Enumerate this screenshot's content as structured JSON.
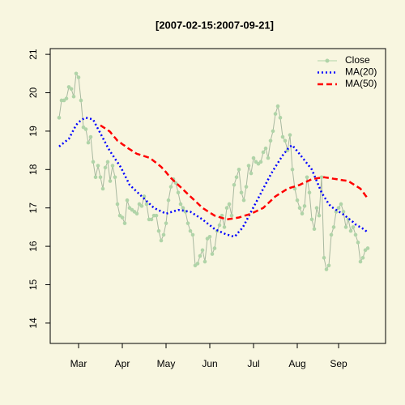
{
  "chart_data": {
    "type": "line",
    "title": "[2007-02-15:2007-09-21]",
    "categories": [
      null,
      null,
      null,
      null,
      null,
      null,
      null,
      null,
      "Mar",
      null,
      null,
      null,
      null,
      null,
      null,
      null,
      null,
      null,
      null,
      null,
      null,
      null,
      null,
      null,
      null,
      null,
      "Apr",
      null,
      null,
      null,
      null,
      null,
      null,
      null,
      null,
      null,
      null,
      null,
      null,
      null,
      null,
      null,
      null,
      null,
      "May",
      null,
      null,
      null,
      null,
      null,
      null,
      null,
      null,
      null,
      null,
      null,
      null,
      null,
      null,
      null,
      null,
      null,
      "Jun",
      null,
      null,
      null,
      null,
      null,
      null,
      null,
      null,
      null,
      null,
      null,
      null,
      null,
      null,
      null,
      null,
      null,
      "Jul",
      null,
      null,
      null,
      null,
      null,
      null,
      null,
      null,
      null,
      null,
      null,
      null,
      null,
      null,
      null,
      null,
      null,
      "Aug",
      null,
      null,
      null,
      null,
      null,
      null,
      null,
      null,
      null,
      null,
      null,
      null,
      null,
      null,
      null,
      null,
      "Sep",
      null,
      null,
      null,
      null,
      null,
      null,
      null,
      null,
      null,
      null,
      null,
      null
    ],
    "series": [
      {
        "name": "Close",
        "color": "#b0d4a8",
        "line_color": "#a8b8a0",
        "line_style": "solid",
        "marker": true,
        "values": [
          19.35,
          19.8,
          19.8,
          19.85,
          20.15,
          20.1,
          19.9,
          20.5,
          20.4,
          19.8,
          19.1,
          19.05,
          18.7,
          18.85,
          18.2,
          17.8,
          18.1,
          17.8,
          17.5,
          18.05,
          18.2,
          17.7,
          18.1,
          17.8,
          17.1,
          16.8,
          16.75,
          16.6,
          17.2,
          17.0,
          16.95,
          16.9,
          16.85,
          17.1,
          17.05,
          17.3,
          17.1,
          16.7,
          16.7,
          16.8,
          16.8,
          16.4,
          16.15,
          16.3,
          16.6,
          17.2,
          17.55,
          17.75,
          17.65,
          17.4,
          17.1,
          17.0,
          16.9,
          16.6,
          16.4,
          16.3,
          15.5,
          15.55,
          15.75,
          15.9,
          15.6,
          16.2,
          16.25,
          15.8,
          15.95,
          16.4,
          16.55,
          16.8,
          16.5,
          17.0,
          17.1,
          16.8,
          17.6,
          17.8,
          18.0,
          17.4,
          17.2,
          17.55,
          18.1,
          17.9,
          18.3,
          18.2,
          18.15,
          18.2,
          18.45,
          18.55,
          18.3,
          18.75,
          19.0,
          19.45,
          19.65,
          19.35,
          18.85,
          18.75,
          18.5,
          18.9,
          18.0,
          17.5,
          17.2,
          17.0,
          16.85,
          17.05,
          17.8,
          17.4,
          16.7,
          16.45,
          17.0,
          16.8,
          17.8,
          15.7,
          15.4,
          15.5,
          16.3,
          16.5,
          16.9,
          17.0,
          17.1,
          16.9,
          16.5,
          16.7,
          16.4,
          16.5,
          16.3,
          16.1,
          15.6,
          15.7,
          15.9,
          15.95
        ]
      },
      {
        "name": "MA(20)",
        "color": "#0000ff",
        "line_style": "dotted",
        "marker": false,
        "values": [
          18.6,
          18.65,
          18.7,
          18.75,
          18.8,
          18.92,
          19.04,
          19.16,
          19.23,
          19.28,
          19.32,
          19.35,
          19.33,
          19.32,
          19.3,
          19.18,
          19.06,
          18.94,
          18.82,
          18.7,
          18.58,
          18.47,
          18.38,
          18.28,
          18.19,
          18.1,
          17.98,
          17.85,
          17.73,
          17.6,
          17.54,
          17.48,
          17.42,
          17.36,
          17.3,
          17.24,
          17.18,
          17.12,
          17.06,
          17.0,
          16.97,
          16.94,
          16.91,
          16.88,
          16.85,
          16.87,
          16.89,
          16.91,
          16.93,
          16.95,
          16.94,
          16.93,
          16.92,
          16.91,
          16.9,
          16.86,
          16.82,
          16.78,
          16.74,
          16.7,
          16.65,
          16.6,
          16.55,
          16.5,
          16.45,
          16.42,
          16.39,
          16.36,
          16.33,
          16.3,
          16.29,
          16.27,
          16.25,
          16.3,
          16.38,
          16.45,
          16.54,
          16.66,
          16.78,
          16.9,
          17.02,
          17.14,
          17.26,
          17.38,
          17.5,
          17.62,
          17.74,
          17.86,
          17.97,
          18.07,
          18.17,
          18.27,
          18.37,
          18.45,
          18.53,
          18.6,
          18.63,
          18.55,
          18.48,
          18.4,
          18.32,
          18.24,
          18.16,
          18.08,
          18.0,
          17.85,
          17.7,
          17.55,
          17.4,
          17.3,
          17.2,
          17.1,
          17.03,
          16.99,
          16.95,
          16.91,
          16.87,
          16.83,
          16.78,
          16.73,
          16.68,
          16.63,
          16.57,
          16.53,
          16.5,
          16.46,
          16.42,
          16.35
        ]
      },
      {
        "name": "MA(50)",
        "color": "#ff0000",
        "line_style": "dashed",
        "marker": false,
        "values": [
          null,
          null,
          null,
          null,
          null,
          null,
          null,
          null,
          null,
          null,
          null,
          null,
          null,
          null,
          null,
          null,
          null,
          19.15,
          19.11,
          19.07,
          19.03,
          18.98,
          18.9,
          18.83,
          18.75,
          18.71,
          18.66,
          18.62,
          18.57,
          18.53,
          18.49,
          18.45,
          18.41,
          18.39,
          18.37,
          18.35,
          18.33,
          18.31,
          18.27,
          18.22,
          18.17,
          18.12,
          18.07,
          18.0,
          17.93,
          17.85,
          17.78,
          17.72,
          17.66,
          17.6,
          17.54,
          17.48,
          17.42,
          17.36,
          17.3,
          17.24,
          17.18,
          17.12,
          17.06,
          17.0,
          16.96,
          16.92,
          16.88,
          16.84,
          16.8,
          16.78,
          16.76,
          16.74,
          16.72,
          16.7,
          16.71,
          16.72,
          16.73,
          16.74,
          16.75,
          16.77,
          16.79,
          16.81,
          16.83,
          16.85,
          16.88,
          16.91,
          16.94,
          16.97,
          17.0,
          17.06,
          17.12,
          17.18,
          17.24,
          17.3,
          17.34,
          17.38,
          17.42,
          17.46,
          17.5,
          17.52,
          17.54,
          17.56,
          17.58,
          17.6,
          17.63,
          17.66,
          17.69,
          17.72,
          17.75,
          17.76,
          17.77,
          17.78,
          17.79,
          17.8,
          17.79,
          17.78,
          17.77,
          17.76,
          17.75,
          17.74,
          17.73,
          17.72,
          17.71,
          17.7,
          17.66,
          17.62,
          17.58,
          17.54,
          17.5,
          17.42,
          17.33,
          17.25
        ]
      }
    ],
    "ylim": [
      13.47,
      21.15
    ],
    "yticks": [
      14,
      15,
      16,
      17,
      18,
      19,
      20,
      21
    ],
    "grid": false,
    "legend": "topright"
  }
}
